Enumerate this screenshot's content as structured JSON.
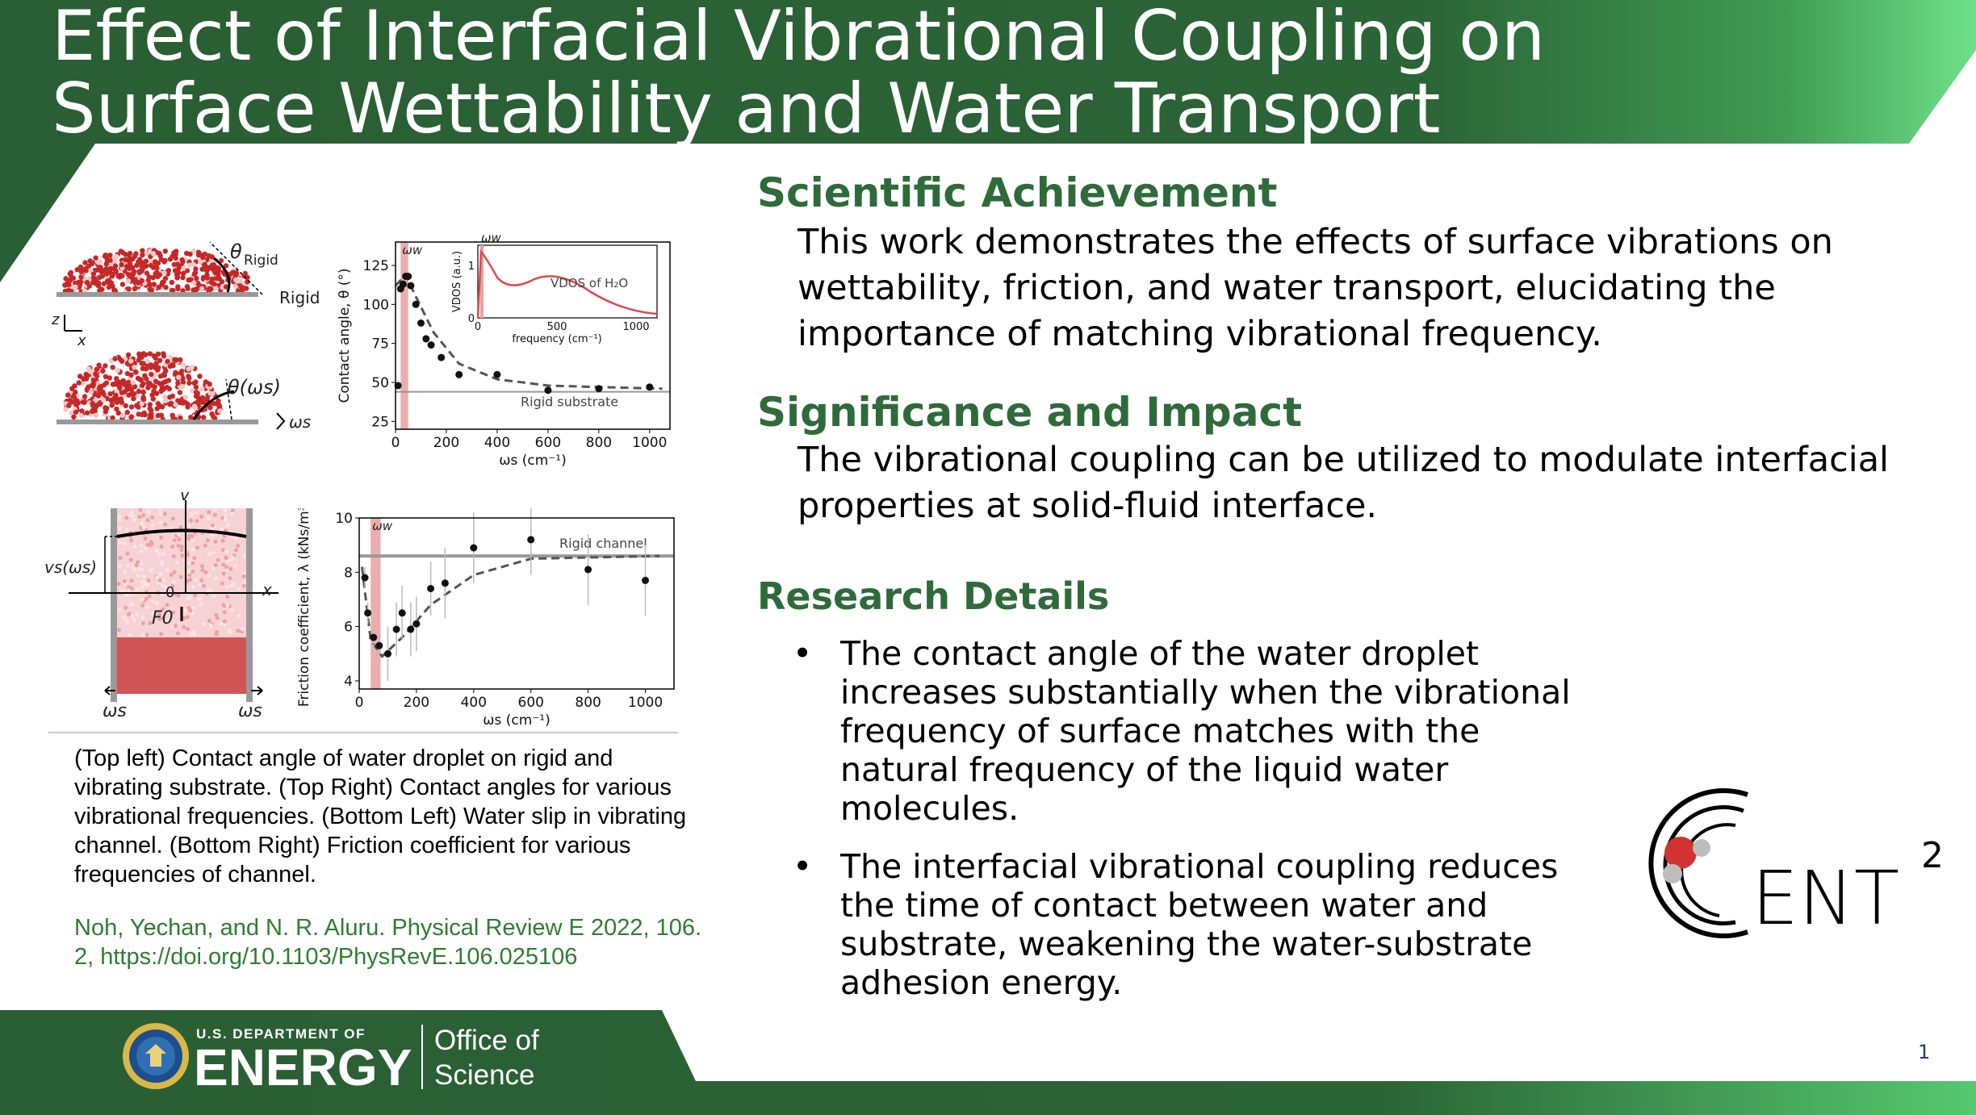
{
  "colors": {
    "green_dark": "#2a5e34",
    "green_light": "#6fe08a",
    "heading_green": "#2f6b3a",
    "red_band": "#e8a0a0"
  },
  "title": "Effect of Interfacial Vibrational Coupling on Surface Wettability and Water Transport",
  "sections": {
    "achievement": {
      "heading": "Scientific Achievement",
      "body": "This work demonstrates the effects of surface vibrations on wettability, friction, and water transport, elucidating the importance of matching vibrational frequency."
    },
    "impact": {
      "heading": "Significance and Impact",
      "body": "The vibrational coupling can be utilized to modulate interfacial properties at solid-fluid interface."
    },
    "details": {
      "heading": "Research Details",
      "bullets": [
        "The contact angle of the water droplet increases substantially when the vibrational frequency of surface matches with the natural frequency of the liquid water molecules.",
        "The interfacial vibrational coupling reduces the time of contact between water and substrate, weakening the water-substrate adhesion energy."
      ]
    }
  },
  "caption": "(Top left) Contact angle of water droplet on rigid and vibrating substrate. (Top Right) Contact angles for various vibrational frequencies. (Bottom Left) Water slip in vibrating channel. (Bottom Right) Friction coefficient for various frequencies of channel.",
  "citation": "Noh, Yechan, and N. R. Aluru. Physical Review E 2022, 106. 2, https://doi.org/10.1103/PhysRevE.106.025106",
  "figure_labels": {
    "theta_rigid": "θ",
    "theta_rigid_sub": "Rigid",
    "rigid": "Rigid",
    "theta_ws": "θ(ωs)",
    "omega_s": "ωs",
    "axis_z": "z",
    "axis_x": "x",
    "axis_v": "v",
    "vs_label": "vs(ωs)",
    "zero": "0",
    "F0": "F0"
  },
  "chart_data": [
    {
      "type": "scatter",
      "ylabel": "Contact angle, θ (°)",
      "xlabel": "ωs (cm⁻¹)",
      "xlim": [
        0,
        1080
      ],
      "ylim": [
        20,
        140
      ],
      "xticks": [
        0,
        200,
        400,
        600,
        800,
        1000
      ],
      "yticks": [
        25,
        50,
        75,
        100,
        125
      ],
      "band_label": "ωw",
      "band": [
        20,
        50
      ],
      "reference_label": "Rigid substrate",
      "reference_value": 44,
      "points": [
        [
          10,
          48
        ],
        [
          20,
          110
        ],
        [
          30,
          113
        ],
        [
          40,
          118
        ],
        [
          50,
          118
        ],
        [
          60,
          112
        ],
        [
          80,
          100
        ],
        [
          100,
          88
        ],
        [
          120,
          78
        ],
        [
          140,
          74
        ],
        [
          180,
          66
        ],
        [
          250,
          55
        ],
        [
          400,
          55
        ],
        [
          600,
          45
        ],
        [
          800,
          46
        ],
        [
          1000,
          47
        ]
      ],
      "fit": [
        [
          0,
          112
        ],
        [
          40,
          119
        ],
        [
          80,
          105
        ],
        [
          150,
          82
        ],
        [
          250,
          62
        ],
        [
          400,
          52
        ],
        [
          600,
          48
        ],
        [
          800,
          47
        ],
        [
          1050,
          46
        ]
      ],
      "inset": {
        "ylabel": "VDOS (a.u.)",
        "xlabel": "frequency (cm⁻¹)",
        "series_label": "VDOS of H₂O",
        "band_label": "ωw",
        "xticks": [
          0,
          500,
          1000
        ],
        "yticks": [
          0,
          1
        ]
      }
    },
    {
      "type": "scatter",
      "ylabel": "Friction coefficient, λ (kNs/m³)",
      "xlabel": "ωs (cm⁻¹)",
      "xlim": [
        0,
        1100
      ],
      "ylim": [
        3.7,
        10
      ],
      "xticks": [
        0,
        200,
        400,
        600,
        800,
        1000
      ],
      "yticks": [
        4,
        6,
        8,
        10
      ],
      "band_label": "ωw",
      "band": [
        40,
        75
      ],
      "reference_label": "Rigid channel",
      "reference_value": 8.6,
      "points": [
        [
          20,
          7.8
        ],
        [
          30,
          6.5
        ],
        [
          50,
          5.6
        ],
        [
          70,
          5.3
        ],
        [
          100,
          5.0
        ],
        [
          130,
          5.9
        ],
        [
          150,
          6.5
        ],
        [
          180,
          5.9
        ],
        [
          200,
          6.1
        ],
        [
          250,
          7.4
        ],
        [
          300,
          7.6
        ],
        [
          400,
          8.9
        ],
        [
          600,
          9.2
        ],
        [
          800,
          8.1
        ],
        [
          1000,
          7.7
        ]
      ],
      "fit": [
        [
          10,
          8.2
        ],
        [
          40,
          5.5
        ],
        [
          80,
          4.9
        ],
        [
          150,
          5.6
        ],
        [
          250,
          6.8
        ],
        [
          400,
          7.9
        ],
        [
          600,
          8.5
        ],
        [
          1050,
          8.6
        ]
      ]
    }
  ]
}
